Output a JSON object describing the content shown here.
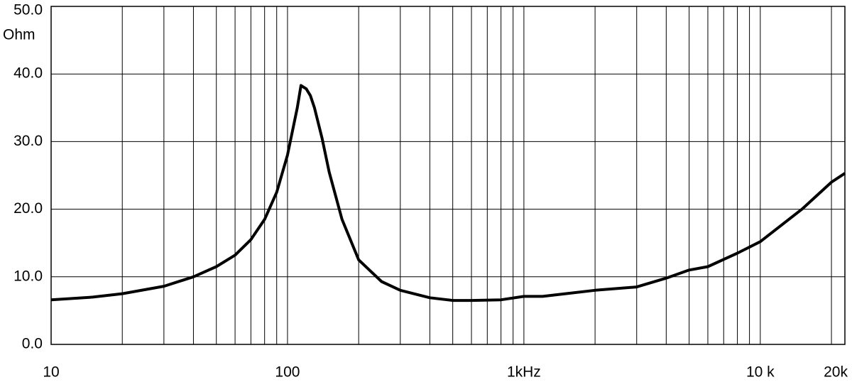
{
  "chart_data": {
    "type": "line",
    "log_x": true,
    "grid": true,
    "y_unit": "Ohm",
    "x": [
      10,
      15,
      20,
      30,
      40,
      50,
      60,
      70,
      80,
      90,
      100,
      110,
      114,
      120,
      125,
      130,
      140,
      150,
      170,
      200,
      250,
      300,
      400,
      500,
      600,
      800,
      1000,
      1200,
      1500,
      2000,
      3000,
      4000,
      5000,
      6000,
      8000,
      10000,
      15000,
      20000,
      22800
    ],
    "series": [
      {
        "color": "#000000",
        "values": [
          6.6,
          7.0,
          7.5,
          8.6,
          10.0,
          11.5,
          13.2,
          15.5,
          18.5,
          22.5,
          28.0,
          35.0,
          38.3,
          37.8,
          36.8,
          35.0,
          30.5,
          25.5,
          18.5,
          12.5,
          9.3,
          8.0,
          6.9,
          6.5,
          6.5,
          6.6,
          7.1,
          7.1,
          7.5,
          8.0,
          8.5,
          9.8,
          11.0,
          11.5,
          13.5,
          15.2,
          20.0,
          24.0,
          25.3
        ]
      }
    ],
    "xlim": [
      10,
      22800
    ],
    "xticks": [
      10,
      100,
      {
        "value": 1000,
        "label": "1kHz"
      },
      {
        "value": 10000,
        "label": "10 k"
      },
      {
        "value": 20000,
        "label": "20k"
      }
    ],
    "xminor": [
      20,
      30,
      40,
      50,
      60,
      70,
      80,
      90,
      200,
      300,
      400,
      500,
      600,
      700,
      800,
      900,
      2000,
      3000,
      4000,
      5000,
      6000,
      7000,
      8000,
      9000
    ],
    "ylim": [
      0,
      50
    ],
    "yticks": [
      {
        "value": 0,
        "label": "0.0"
      },
      {
        "value": 10,
        "label": "10.0"
      },
      {
        "value": 20,
        "label": "20.0"
      },
      {
        "value": 30,
        "label": "30.0"
      },
      {
        "value": 40,
        "label": "40.0"
      },
      {
        "value": 50,
        "label": "50.0"
      }
    ]
  }
}
